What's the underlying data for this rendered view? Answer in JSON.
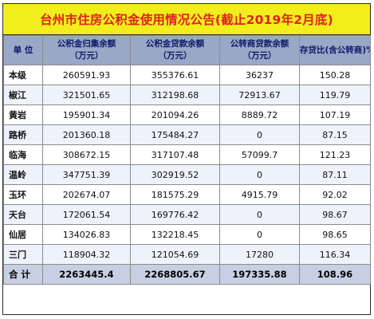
{
  "title": "台州市住房公积金使用情况公告(截止2019年2月底)",
  "headers": {
    "unit": "单  位",
    "col1_line1": "公积金归集余额",
    "col1_line2": "（万元）",
    "col2_line1": "公积金贷款余额",
    "col2_line2": "（万元）",
    "col3_line1": "公转商贷款余额",
    "col3_line2": "（万元）",
    "col4": "存贷比(含公转商)%"
  },
  "rows": [
    {
      "name": "本级",
      "balance": "260591.93",
      "loan": "355376.61",
      "commercial": "36237",
      "ratio": "150.28"
    },
    {
      "name": "椒江",
      "balance": "321501.65",
      "loan": "312198.68",
      "commercial": "72913.67",
      "ratio": "119.79"
    },
    {
      "name": "黄岩",
      "balance": "195901.34",
      "loan": "201094.26",
      "commercial": "8889.72",
      "ratio": "107.19"
    },
    {
      "name": "路桥",
      "balance": "201360.18",
      "loan": "175484.27",
      "commercial": "0",
      "ratio": "87.15"
    },
    {
      "name": "临海",
      "balance": "308672.15",
      "loan": "317107.48",
      "commercial": "57099.7",
      "ratio": "121.23"
    },
    {
      "name": "温岭",
      "balance": "347751.39",
      "loan": "302919.52",
      "commercial": "0",
      "ratio": "87.11"
    },
    {
      "name": "玉环",
      "balance": "202674.07",
      "loan": "181575.29",
      "commercial": "4915.79",
      "ratio": "92.02"
    },
    {
      "name": "天台",
      "balance": "172061.54",
      "loan": "169776.42",
      "commercial": "0",
      "ratio": "98.67"
    },
    {
      "name": "仙居",
      "balance": "134026.83",
      "loan": "132218.45",
      "commercial": "0",
      "ratio": "98.65"
    },
    {
      "name": "三门",
      "balance": "118904.32",
      "loan": "121054.69",
      "commercial": "17280",
      "ratio": "116.34"
    }
  ],
  "total": {
    "name": "合  计",
    "balance": "2263445.4",
    "loan": "2268805.67",
    "commercial": "197335.88",
    "ratio": "108.96"
  }
}
